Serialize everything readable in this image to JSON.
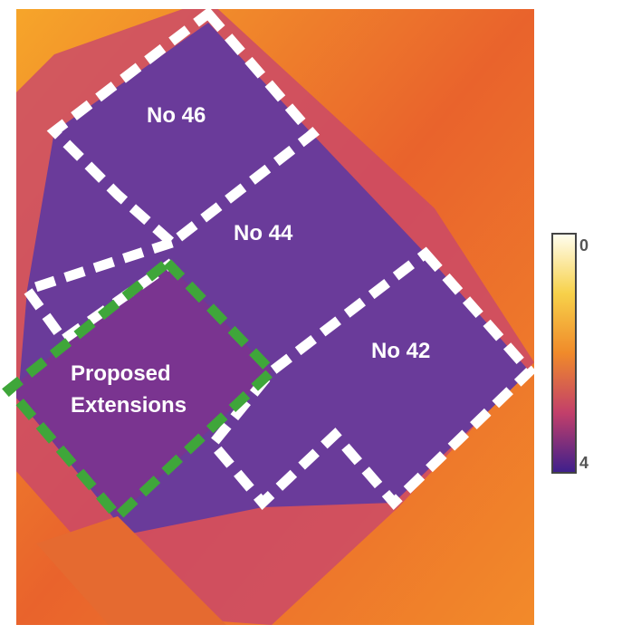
{
  "labels": [
    "No 46",
    "No 44",
    "No 42",
    "Proposed",
    "Extensions"
  ],
  "colorbar": {
    "ticks": [
      0,
      4
    ]
  }
}
